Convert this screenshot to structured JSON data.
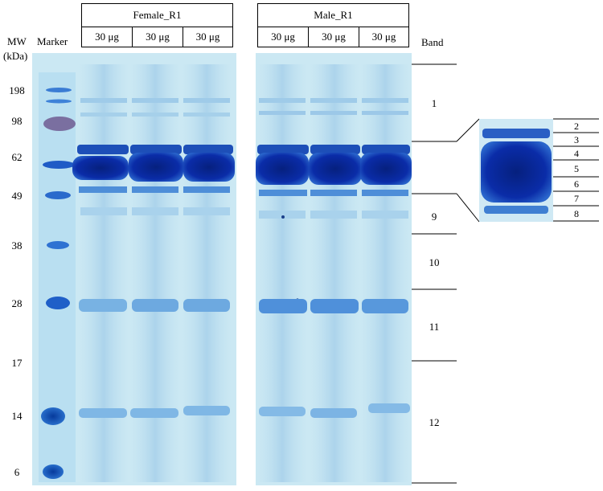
{
  "mw_header": {
    "line1": "MW",
    "line2": "(kDa)"
  },
  "marker_label": "Marker",
  "band_header": "Band",
  "groups": [
    {
      "name": "Female_R1",
      "lanes": [
        "30 μg",
        "30 μg",
        "30 μg"
      ]
    },
    {
      "name": "Male_R1",
      "lanes": [
        "30 μg",
        "30 μg",
        "30 μg"
      ]
    }
  ],
  "mw_markers": [
    "198",
    "98",
    "62",
    "49",
    "38",
    "28",
    "17",
    "14",
    "6"
  ],
  "bands": [
    "1",
    "9",
    "10",
    "11",
    "12"
  ],
  "inset_bands": [
    "2",
    "3",
    "4",
    "5",
    "6",
    "7",
    "8"
  ],
  "colors": {
    "gel_bg": "#c9e7f2",
    "band_dark": "#0a2ca8",
    "band_mid": "#2f6fd0",
    "band_light": "#8fc4e6"
  }
}
